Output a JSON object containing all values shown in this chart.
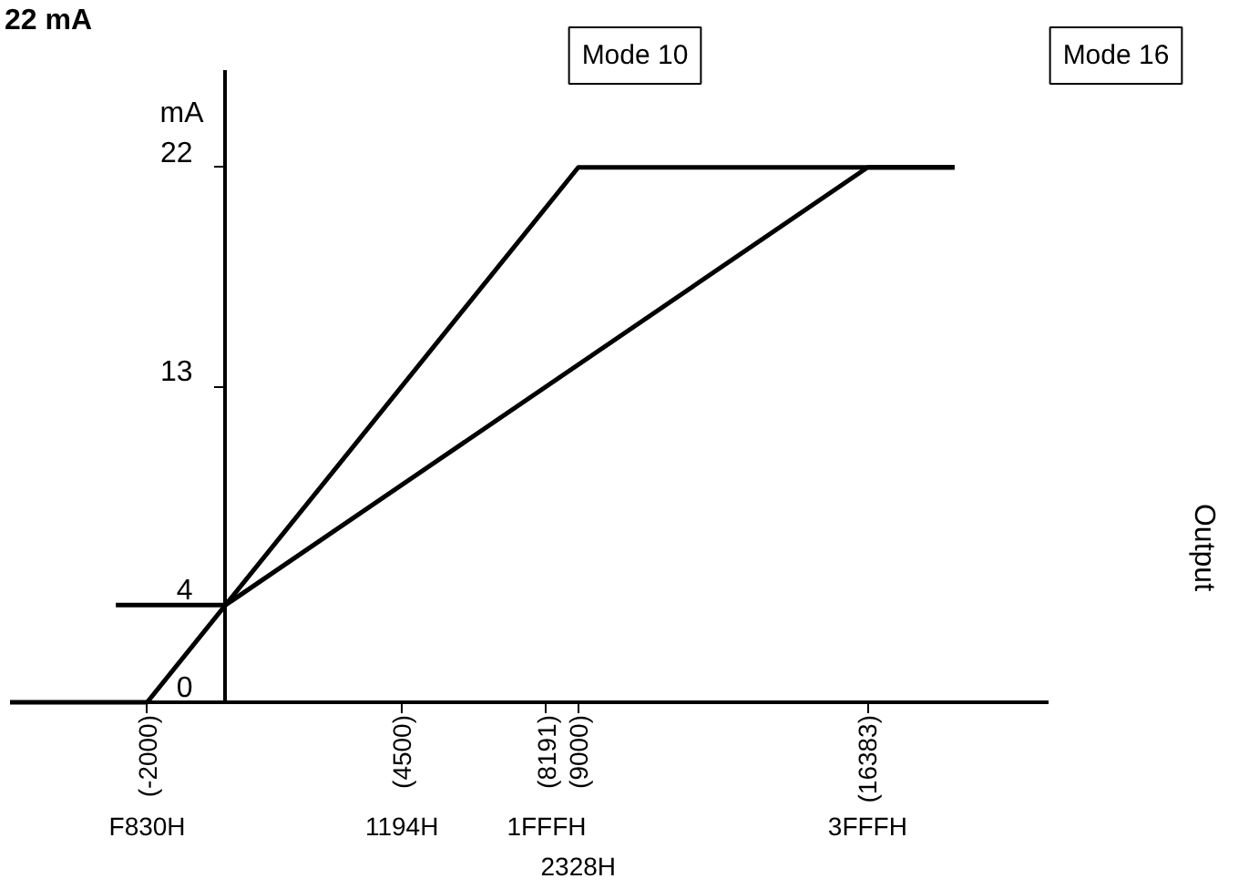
{
  "chart_data": {
    "type": "line",
    "title": "22 mA",
    "ylabel": "mA",
    "xlim": [
      -5500,
      21000
    ],
    "ylim": [
      0,
      26
    ],
    "xticks": [
      {
        "value": -2000,
        "label": "(-2000)"
      },
      {
        "value": 4500,
        "label": "(4500)"
      },
      {
        "value": 8191,
        "label": "(8191)"
      },
      {
        "value": 9000,
        "label": "(9000)"
      },
      {
        "value": 16383,
        "label": "(16383)"
      }
    ],
    "yticks": [
      0,
      4,
      13,
      22
    ],
    "series": [
      {
        "name": "Mode 10",
        "color": "#000000",
        "x": [
          -5500,
          -2000,
          9000,
          18600
        ],
        "values": [
          0,
          0,
          22,
          22
        ]
      },
      {
        "name": "Mode 16",
        "color": "#000000",
        "x": [
          -2800,
          0,
          16383,
          18600
        ],
        "values": [
          4,
          4,
          22,
          22
        ]
      }
    ],
    "annotations": [
      "F830H",
      "1194H",
      "1FFFH",
      "2328H",
      "3FFFH",
      "Output"
    ],
    "grid": false,
    "line_style": "solid",
    "marker": "none"
  }
}
